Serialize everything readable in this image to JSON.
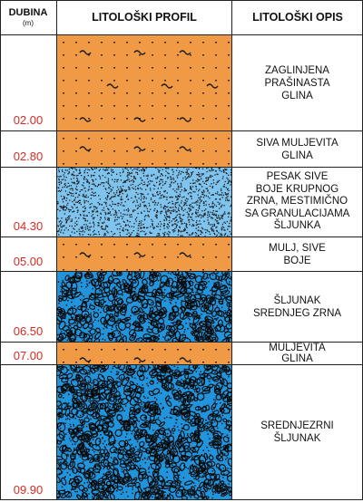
{
  "header": {
    "depth_title": "DUBINA",
    "depth_unit": "(m)",
    "profile_title": "LITOLOŠKI PROFIL",
    "description_title": "LITOLOŠKI OPIS"
  },
  "colors": {
    "clay": "#f09a45",
    "sand": "#7fc4ee",
    "gravel": "#2294dc",
    "depth_text": "#d62b24",
    "border": "#222222"
  },
  "layers": [
    {
      "bottom_depth": "02.00",
      "description": [
        "ZAGLINJENA",
        "PRAŠINASTA",
        "GLINA"
      ],
      "fill": "clay"
    },
    {
      "bottom_depth": "02.80",
      "description": [
        "SIVA MULJEVITA",
        "GLINA"
      ],
      "fill": "clay"
    },
    {
      "bottom_depth": "04.30",
      "description": [
        "PESAK SIVE",
        "BOJE KRUPNOG",
        "ZRNA, MESTIMIČNO",
        "SA GRANULACIJAMA",
        "ŠLJUNKA"
      ],
      "fill": "sand"
    },
    {
      "bottom_depth": "05.00",
      "description": [
        "MULJ, SIVE",
        "BOJE"
      ],
      "fill": "clay"
    },
    {
      "bottom_depth": "06.50",
      "description": [
        "ŠLJUNAK",
        "SREDNJEG ZRNA"
      ],
      "fill": "gravel"
    },
    {
      "bottom_depth": "07.00",
      "description": [
        "MULJEVITA",
        "GLINA"
      ],
      "fill": "clay"
    },
    {
      "bottom_depth": "09.90",
      "description": [
        "SREDNJEZRNI",
        "ŠLJUNAK"
      ],
      "fill": "gravel"
    }
  ]
}
